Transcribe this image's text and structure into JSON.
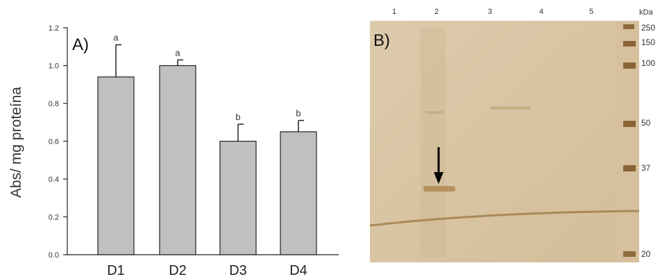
{
  "panel_a": {
    "label": "A)",
    "chart_data": {
      "type": "bar",
      "categories": [
        "D1",
        "D2",
        "D3",
        "D4"
      ],
      "values": [
        0.94,
        1.0,
        0.6,
        0.65
      ],
      "errors": [
        0.17,
        0.03,
        0.09,
        0.06
      ],
      "significance_letters": [
        "a",
        "a",
        "b",
        "b"
      ],
      "title": "",
      "xlabel": "",
      "ylabel": "Abs/ mg proteína",
      "ylim": [
        0,
        1.2
      ],
      "yticks": [
        "0.0",
        "0.2",
        "0.4",
        "0.6",
        "0.8",
        "1.0",
        "1.2"
      ],
      "grid": false,
      "bar_color": "#c0c0c0"
    }
  },
  "panel_b": {
    "label": "B)",
    "lane_labels": [
      "1",
      "2",
      "3",
      "4",
      "5"
    ],
    "marker_unit": "kDa",
    "marker_labels": [
      "250",
      "150",
      "100",
      "50",
      "37",
      "20"
    ],
    "gel_color": "#d9c6a6",
    "band_color": "#b08a55",
    "arrow": "arrow-down-icon"
  }
}
